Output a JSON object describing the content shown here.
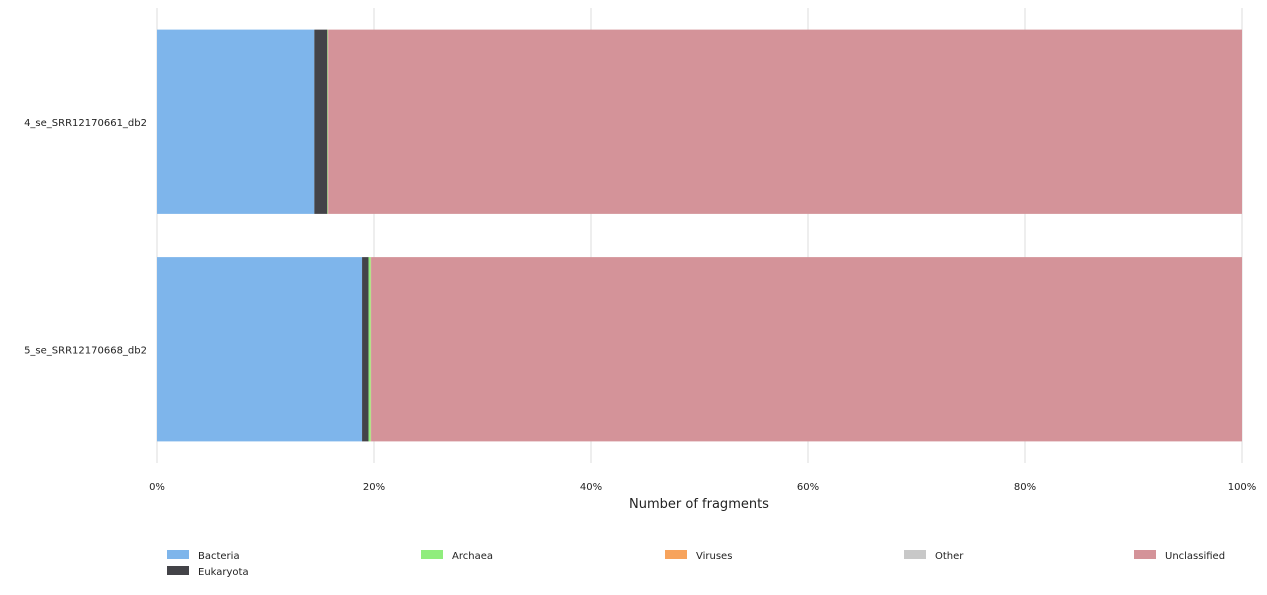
{
  "chart_data": {
    "type": "bar",
    "orientation": "horizontal",
    "stacked": true,
    "xlabel": "Number of fragments",
    "ylabel": "",
    "xlim": [
      0,
      100
    ],
    "x_ticks": [
      0,
      20,
      40,
      60,
      80,
      100
    ],
    "x_tick_labels": [
      "0%",
      "20%",
      "40%",
      "60%",
      "80%",
      "100%"
    ],
    "grid": true,
    "legend_position": "bottom",
    "categories": [
      "4_se_SRR12170661_db2",
      "5_se_SRR12170668_db2"
    ],
    "series": [
      {
        "name": "Bacteria",
        "color": "#7eb5eb",
        "values": [
          14.5,
          18.9
        ]
      },
      {
        "name": "Eukaryota",
        "color": "#434348",
        "values": [
          1.2,
          0.6
        ]
      },
      {
        "name": "Archaea",
        "color": "#90ed7d",
        "values": [
          0.05,
          0.2
        ]
      },
      {
        "name": "Viruses",
        "color": "#f7a35c",
        "values": [
          0.02,
          0.02
        ]
      },
      {
        "name": "Other",
        "color": "#c8c8c8",
        "values": [
          0.01,
          0.01
        ]
      },
      {
        "name": "Unclassified",
        "color": "#d49399",
        "values": [
          84.22,
          80.27
        ]
      }
    ]
  }
}
